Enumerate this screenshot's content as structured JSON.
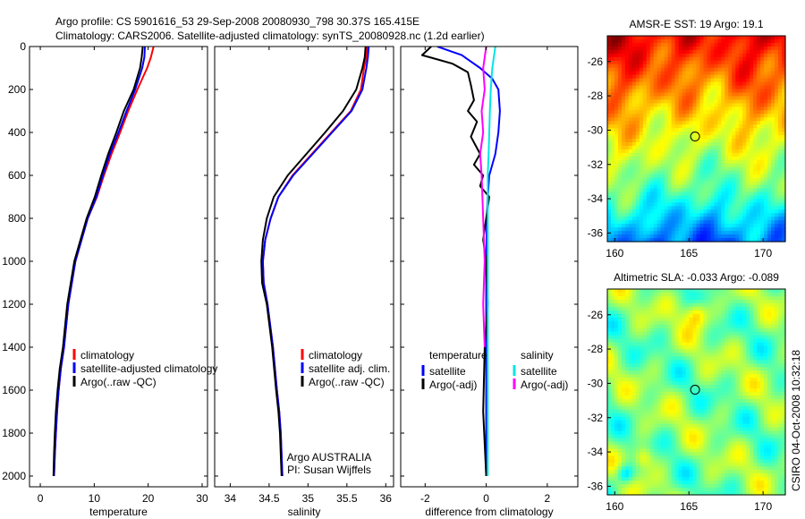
{
  "header": {
    "line1": "Argo profile: CS 5901616_53 29-Sep-2008 20080930_798 30.37S 165.415E",
    "line2": "Climatology: CARS2006. Satellite-adjusted climatology: synTS_20080928.nc (1.2d earlier)"
  },
  "side_label": "CSIRO 04-Oct-2008 10:32:18",
  "colors": {
    "climatology": "#ff0000",
    "satellite": "#0000ff",
    "argo": "#000000",
    "satellite_salinity_diff": "#00e5e5",
    "argo_salinity_diff": "#ff00ff"
  },
  "chart_data": [
    {
      "type": "line",
      "xlabel": "temperature",
      "ylabel": "",
      "xlim": [
        -2,
        31
      ],
      "ylim": [
        2050,
        0
      ],
      "yreverse": true,
      "xticks": [
        0,
        10,
        20,
        30
      ],
      "yticks": [
        0,
        200,
        400,
        600,
        800,
        1000,
        1200,
        1400,
        1600,
        1800,
        2000
      ],
      "legend": [
        "climatology",
        "satellite-adjusted climatology",
        "Argo(..raw -QC)"
      ],
      "series": [
        {
          "name": "climatology",
          "color": "#ff0000",
          "x": [
            21.0,
            20.5,
            19.8,
            18.0,
            16.3,
            14.8,
            13.2,
            11.8,
            10.5,
            8.8,
            6.5,
            5.2,
            4.4,
            3.8,
            3.4,
            3.1,
            2.9,
            2.7,
            2.55
          ],
          "y": [
            0,
            50,
            100,
            200,
            300,
            400,
            500,
            600,
            700,
            800,
            1000,
            1200,
            1400,
            1500,
            1600,
            1700,
            1800,
            1900,
            2000
          ]
        },
        {
          "name": "satellite-adjusted climatology",
          "color": "#0000ff",
          "x": [
            19.4,
            19.3,
            18.9,
            17.6,
            16.0,
            14.5,
            12.9,
            11.6,
            10.4,
            8.8,
            6.5,
            5.2,
            4.4,
            3.8,
            3.4,
            3.1,
            2.9,
            2.7,
            2.55
          ],
          "y": [
            0,
            50,
            100,
            200,
            300,
            400,
            500,
            600,
            700,
            800,
            1000,
            1200,
            1400,
            1500,
            1600,
            1700,
            1800,
            1900,
            2000
          ]
        },
        {
          "name": "Argo(..raw -QC)",
          "color": "#000000",
          "x": [
            19.0,
            18.8,
            18.5,
            17.3,
            15.5,
            14.1,
            12.6,
            11.3,
            10.1,
            8.6,
            6.3,
            5.0,
            4.2,
            3.6,
            3.2,
            2.9,
            2.7,
            2.55,
            2.45
          ],
          "y": [
            0,
            50,
            100,
            200,
            300,
            400,
            500,
            600,
            700,
            800,
            1000,
            1200,
            1400,
            1500,
            1600,
            1700,
            1800,
            1900,
            2000
          ]
        }
      ]
    },
    {
      "type": "line",
      "xlabel": "salinity",
      "ylabel": "",
      "xlim": [
        33.8,
        36.1
      ],
      "ylim": [
        2050,
        0
      ],
      "yreverse": true,
      "xticks": [
        34,
        34.5,
        35,
        35.5,
        36
      ],
      "legend": [
        "climatology",
        "satellite adj. clim.",
        "Argo(..raw -QC)"
      ],
      "annotations": [
        "Argo AUSTRALIA",
        "PI: Susan Wijffels"
      ],
      "series": [
        {
          "name": "climatology",
          "color": "#ff0000",
          "x": [
            35.76,
            35.75,
            35.72,
            35.68,
            35.55,
            35.3,
            35.05,
            34.8,
            34.62,
            34.52,
            34.45,
            34.42,
            34.43,
            34.48,
            34.55,
            34.6,
            34.63,
            34.65,
            34.66,
            34.67
          ],
          "y": [
            0,
            50,
            100,
            200,
            300,
            400,
            500,
            600,
            700,
            800,
            900,
            1000,
            1100,
            1200,
            1400,
            1600,
            1700,
            1800,
            1900,
            2000
          ]
        },
        {
          "name": "satellite adj. clim.",
          "color": "#0000ff",
          "x": [
            35.78,
            35.77,
            35.75,
            35.7,
            35.56,
            35.31,
            35.06,
            34.81,
            34.62,
            34.52,
            34.45,
            34.42,
            34.43,
            34.48,
            34.55,
            34.6,
            34.63,
            34.65,
            34.66,
            34.67
          ],
          "y": [
            0,
            50,
            100,
            200,
            300,
            400,
            500,
            600,
            700,
            800,
            900,
            1000,
            1100,
            1200,
            1400,
            1600,
            1700,
            1800,
            1900,
            2000
          ]
        },
        {
          "name": "Argo(..raw -QC)",
          "color": "#000000",
          "x": [
            35.74,
            35.73,
            35.7,
            35.62,
            35.45,
            35.22,
            34.98,
            34.74,
            34.56,
            34.47,
            34.42,
            34.4,
            34.41,
            34.47,
            34.54,
            34.59,
            34.62,
            34.64,
            34.65,
            34.66
          ],
          "y": [
            0,
            50,
            100,
            200,
            300,
            400,
            500,
            600,
            700,
            800,
            900,
            1000,
            1100,
            1200,
            1400,
            1600,
            1700,
            1800,
            1900,
            2000
          ]
        }
      ]
    },
    {
      "type": "line",
      "xlabel": "difference from climatology",
      "ylabel": "",
      "xlim": [
        -2.8,
        3.0
      ],
      "ylim": [
        2050,
        0
      ],
      "yreverse": true,
      "xticks": [
        -2,
        0,
        2
      ],
      "legend_groups": [
        {
          "title": "temperature",
          "items": [
            "satellite",
            "Argo(-adj)"
          ]
        },
        {
          "title": "salinity",
          "items": [
            "satellite",
            "Argo(-adj)"
          ]
        }
      ],
      "series": [
        {
          "name": "satellite",
          "group": "temperature",
          "color": "#0000ff",
          "x": [
            -1.6,
            -1.2,
            -0.8,
            -0.6,
            -0.2,
            0.2,
            0.4,
            0.45,
            0.4,
            0.3,
            0.1,
            0.05,
            0.02,
            0.0,
            0.0,
            0.0,
            0.0
          ],
          "y": [
            0,
            20,
            40,
            60,
            100,
            150,
            200,
            300,
            400,
            500,
            600,
            700,
            800,
            1000,
            1200,
            1600,
            2000
          ]
        },
        {
          "name": "Argo(-adj)",
          "group": "temperature",
          "color": "#000000",
          "x": [
            -1.8,
            -2.1,
            -1.6,
            -1.1,
            -0.6,
            -0.5,
            -0.4,
            -0.6,
            -0.3,
            -0.5,
            -0.2,
            -0.4,
            -0.1,
            -0.2,
            0.1,
            0.0,
            -0.1,
            0.0,
            0.05,
            -0.05,
            -0.1,
            0.0
          ],
          "y": [
            0,
            40,
            60,
            80,
            120,
            180,
            250,
            300,
            350,
            420,
            500,
            550,
            600,
            650,
            700,
            800,
            900,
            1000,
            1200,
            1400,
            1700,
            2000
          ]
        },
        {
          "name": "satellite",
          "group": "salinity",
          "color": "#00e5e5",
          "x": [
            0.3,
            0.2,
            0.15,
            0.12,
            0.1,
            0.08,
            0.05,
            0.05,
            0.05,
            0.05,
            0.05
          ],
          "y": [
            0,
            100,
            200,
            300,
            400,
            500,
            600,
            800,
            1000,
            1500,
            2000
          ]
        },
        {
          "name": "Argo(-adj)",
          "group": "salinity",
          "color": "#ff00ff",
          "x": [
            0.0,
            -0.1,
            -0.05,
            -0.15,
            -0.1,
            -0.2,
            -0.15,
            -0.1,
            -0.05,
            -0.1,
            -0.05
          ],
          "y": [
            0,
            100,
            200,
            300,
            400,
            500,
            600,
            800,
            1000,
            1200,
            1400
          ]
        }
      ]
    },
    {
      "type": "heatmap",
      "title": "AMSR-E SST: 19 Argo: 19.1",
      "xlim": [
        159.5,
        171.5
      ],
      "ylim": [
        -36.5,
        -24.5
      ],
      "xticks": [
        160,
        165,
        170
      ],
      "yticks": [
        -26,
        -28,
        -30,
        -32,
        -34,
        -36
      ],
      "colormap": "jet",
      "marker": {
        "lon": 165.415,
        "lat": -30.37
      }
    },
    {
      "type": "heatmap",
      "title": "Altimetric SLA: -0.033 Argo: -0.089",
      "xlim": [
        159.5,
        171.5
      ],
      "ylim": [
        -36.5,
        -24.5
      ],
      "xticks": [
        160,
        165,
        170
      ],
      "yticks": [
        -26,
        -28,
        -30,
        -32,
        -34,
        -36
      ],
      "colormap": "jet",
      "marker": {
        "lon": 165.415,
        "lat": -30.37
      }
    }
  ]
}
